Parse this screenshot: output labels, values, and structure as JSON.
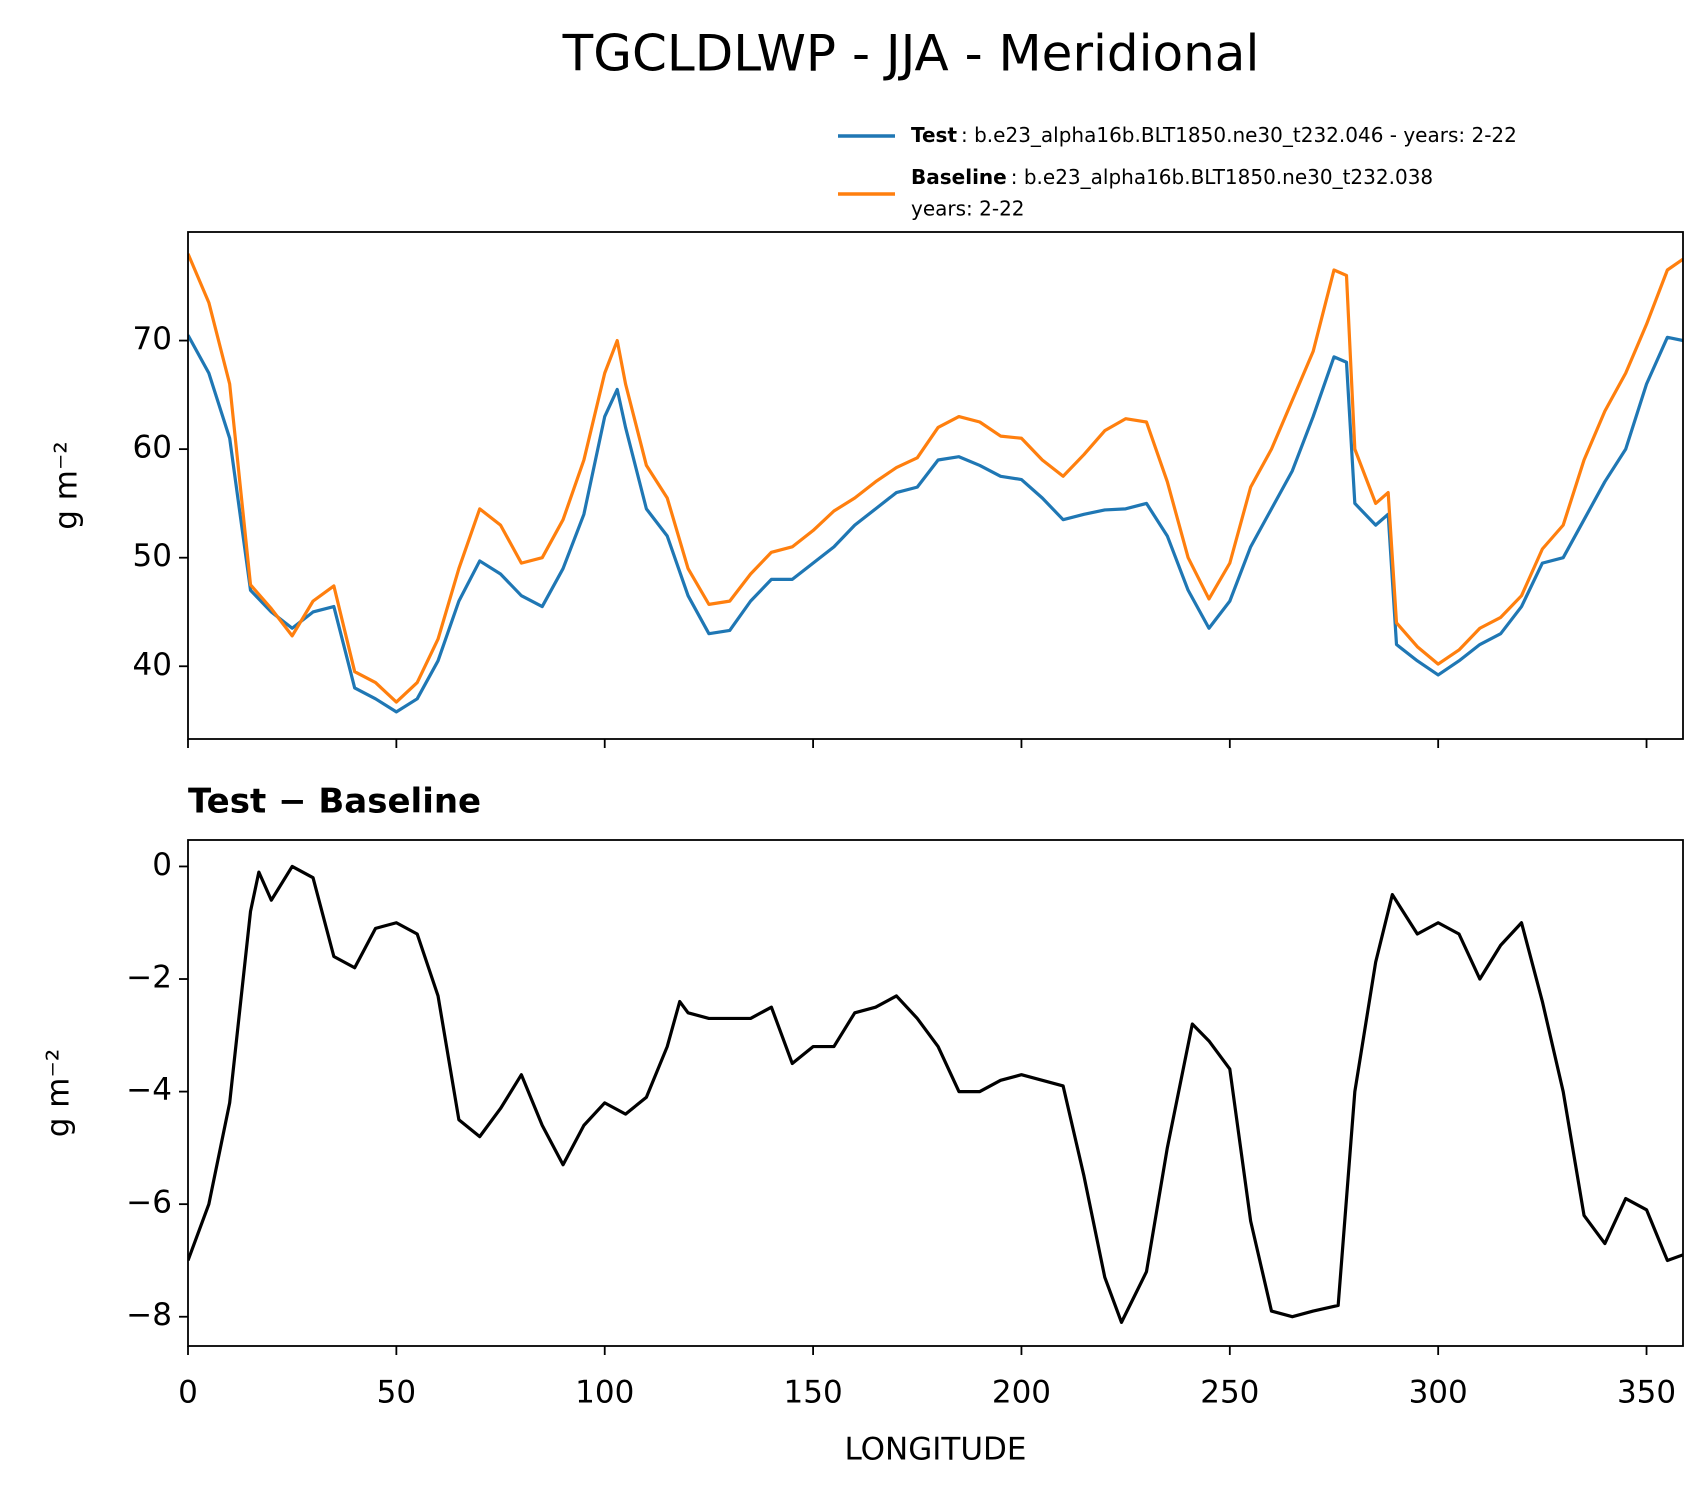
{
  "chart_data": [
    {
      "type": "line",
      "title": "TGCLDLWP - JJA - Meridional",
      "ylabel": "g m⁻²",
      "x": [
        0,
        5,
        10,
        15,
        20,
        25,
        30,
        35,
        40,
        45,
        50,
        55,
        60,
        65,
        70,
        75,
        80,
        85,
        90,
        95,
        100,
        103,
        105,
        110,
        115,
        120,
        125,
        130,
        135,
        140,
        145,
        150,
        155,
        160,
        165,
        170,
        175,
        180,
        185,
        190,
        195,
        200,
        205,
        210,
        215,
        220,
        225,
        230,
        235,
        240,
        245,
        250,
        255,
        260,
        265,
        270,
        275,
        278,
        280,
        285,
        288,
        290,
        295,
        300,
        305,
        310,
        315,
        320,
        325,
        330,
        335,
        340,
        345,
        350,
        355,
        358.75
      ],
      "series": [
        {
          "name": "Test",
          "description": [
            ": b.e23_alpha16b.BLT1850.ne30_t232.046 - years: 2-22"
          ],
          "color": "#1f77b4",
          "values": [
            70.5,
            67,
            61,
            47,
            45,
            43.5,
            45,
            45.5,
            38,
            37,
            35.8,
            37,
            40.5,
            46,
            49.7,
            48.5,
            46.5,
            45.5,
            49,
            54,
            63,
            65.5,
            62,
            54.5,
            52,
            46.5,
            43,
            43.3,
            46,
            48,
            48,
            49.5,
            51,
            53,
            54.5,
            56,
            56.5,
            59,
            59.3,
            58.5,
            57.5,
            57.2,
            55.5,
            53.5,
            54,
            54.4,
            54.5,
            55,
            52,
            47,
            43.5,
            46,
            51,
            54.5,
            58,
            63,
            68.5,
            68,
            55,
            53,
            54,
            42,
            40.5,
            39.2,
            40.5,
            42,
            43,
            45.5,
            49.5,
            50,
            53.5,
            57,
            60,
            66,
            70.3,
            70
          ]
        },
        {
          "name": "Baseline",
          "description": [
            ": b.e23_alpha16b.BLT1850.ne30_t232.038",
            "years: 2-22"
          ],
          "color": "#ff7f0e",
          "values": [
            78,
            73.5,
            66,
            47.5,
            45.3,
            42.8,
            46,
            47.4,
            39.5,
            38.5,
            36.7,
            38.5,
            42.5,
            49,
            54.5,
            53,
            49.5,
            50,
            53.5,
            59,
            67,
            70,
            66,
            58.5,
            55.5,
            49,
            45.7,
            46,
            48.5,
            50.5,
            51,
            52.5,
            54.3,
            55.5,
            57,
            58.3,
            59.2,
            62,
            63,
            62.5,
            61.2,
            61,
            59,
            57.5,
            59.5,
            61.7,
            62.8,
            62.5,
            57,
            50,
            46.2,
            49.5,
            56.5,
            60,
            64.5,
            69,
            76.5,
            76,
            60,
            55,
            56,
            44,
            41.8,
            40.2,
            41.5,
            43.5,
            44.5,
            46.5,
            50.8,
            53,
            59,
            63.5,
            67,
            71.5,
            76.5,
            77.5
          ]
        }
      ],
      "xlim": [
        0,
        358.75
      ],
      "xticks": [
        0,
        50,
        100,
        150,
        200,
        250,
        300,
        350
      ],
      "show_xtick_labels": false,
      "ylim": [
        33.3,
        80.0
      ],
      "yticks": [
        40,
        50,
        60,
        70
      ],
      "legend": "upper right"
    },
    {
      "type": "line",
      "title": "Test − Baseline",
      "ylabel": "g m⁻²",
      "xlabel": "LONGITUDE",
      "x": [
        0,
        5,
        10,
        15,
        17,
        20,
        25,
        30,
        35,
        40,
        45,
        50,
        55,
        60,
        65,
        70,
        75,
        80,
        85,
        90,
        95,
        100,
        105,
        110,
        115,
        118,
        120,
        125,
        130,
        135,
        140,
        145,
        150,
        155,
        160,
        165,
        170,
        175,
        180,
        185,
        190,
        195,
        200,
        205,
        210,
        215,
        220,
        224,
        230,
        235,
        241,
        245,
        250,
        255,
        260,
        265,
        270,
        276,
        280,
        285,
        289,
        295,
        300,
        305,
        310,
        315,
        320,
        325,
        330,
        335,
        340,
        345,
        350,
        355,
        358.75
      ],
      "series": [
        {
          "color": "#000000",
          "values": [
            -7.0,
            -6.0,
            -4.2,
            -0.8,
            -0.1,
            -0.6,
            0.0,
            -0.2,
            -1.6,
            -1.8,
            -1.1,
            -1.0,
            -1.2,
            -2.3,
            -4.5,
            -4.8,
            -4.3,
            -3.7,
            -4.6,
            -5.3,
            -4.6,
            -4.2,
            -4.4,
            -4.1,
            -3.2,
            -2.4,
            -2.6,
            -2.7,
            -2.7,
            -2.7,
            -2.5,
            -3.5,
            -3.2,
            -3.2,
            -2.6,
            -2.5,
            -2.3,
            -2.7,
            -3.2,
            -4.0,
            -4.0,
            -3.8,
            -3.7,
            -3.8,
            -3.9,
            -5.5,
            -7.3,
            -8.1,
            -7.2,
            -5.0,
            -2.8,
            -3.1,
            -3.6,
            -6.3,
            -7.9,
            -8.0,
            -7.9,
            -7.8,
            -4.0,
            -1.7,
            -0.5,
            -1.2,
            -1.0,
            -1.2,
            -2.0,
            -1.4,
            -1.0,
            -2.4,
            -4.0,
            -6.2,
            -6.7,
            -5.9,
            -6.1,
            -7.0,
            -6.9
          ]
        }
      ],
      "xlim": [
        0,
        358.75
      ],
      "xticks": [
        0,
        50,
        100,
        150,
        200,
        250,
        300,
        350
      ],
      "show_xtick_labels": true,
      "ylim": [
        -8.52,
        0.47
      ],
      "yticks": [
        0,
        {
          "value": -2,
          "label": "−2"
        },
        {
          "value": -4,
          "label": "−4"
        },
        {
          "value": -6,
          "label": "−6"
        },
        {
          "value": -8,
          "label": "−8"
        }
      ]
    }
  ]
}
